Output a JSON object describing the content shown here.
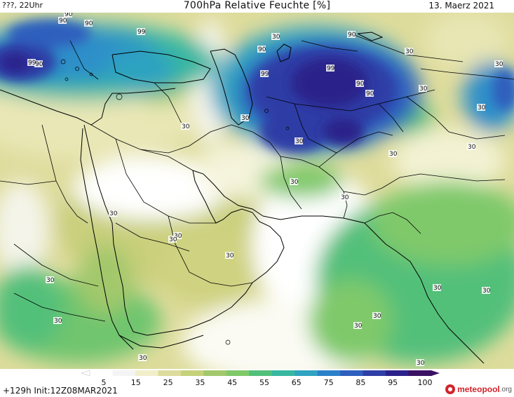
{
  "header": {
    "left": "???, 22Uhr",
    "title": "700hPa Relative Feuchte [%]",
    "date": "13. Maerz 2021"
  },
  "footer": {
    "run_info": "+129h Init:12Z08MAR2021",
    "logo_text": "meteopool",
    "logo_tld": ".org"
  },
  "legend": {
    "ticks": [
      "5",
      "15",
      "25",
      "35",
      "45",
      "55",
      "65",
      "75",
      "85",
      "95",
      "100"
    ],
    "colors": [
      "#ffffff",
      "#f4f4f4",
      "#f1efc9",
      "#dedc9c",
      "#c6d27a",
      "#a3c86c",
      "#7fc96a",
      "#52c07a",
      "#38b7a0",
      "#2fa3c1",
      "#2b80c8",
      "#2e5fbe",
      "#2f3ea6",
      "#2b218a",
      "#3a1063"
    ]
  },
  "contour_labels": [
    "90",
    "90",
    "99",
    "90",
    "90",
    "99",
    "99",
    "99",
    "90",
    "90",
    "90",
    "90",
    "30",
    "30",
    "30",
    "30",
    "30",
    "30",
    "30",
    "30",
    "30",
    "30",
    "30",
    "30",
    "30",
    "30",
    "30",
    "30",
    "30",
    "30",
    "30",
    "30",
    "30",
    "30",
    "30",
    "30"
  ],
  "colors": {
    "coast": "#000000",
    "dry": "#ffffff",
    "moist": "#2f3ea6",
    "logo": "#d2232a"
  }
}
